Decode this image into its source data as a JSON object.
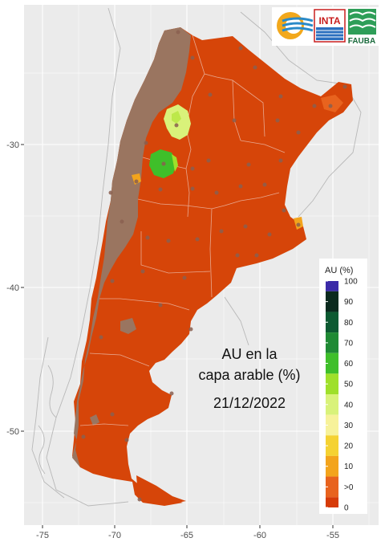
{
  "map": {
    "annotation_lines": [
      "AU en la",
      "capa arable (%)",
      "21/12/2022"
    ],
    "x_ticks": [
      "-75",
      "-70",
      "-65",
      "-60",
      "-55"
    ],
    "y_ticks": [
      "-30",
      "-40",
      "-50"
    ],
    "panel_bg": "#ebebeb",
    "grid_color": "#ffffff",
    "land_color": "#d64509",
    "andes_color": "#9a7560",
    "border_color": "#e8a890",
    "station_color": "#8a6050",
    "neighbor_color": "#b8b8b8"
  },
  "legend": {
    "title": "AU (%)",
    "entries": [
      {
        "label": "100",
        "color": "#3b2aa8"
      },
      {
        "label": "90",
        "color": "#0b2a1e"
      },
      {
        "label": "80",
        "color": "#0d5a32"
      },
      {
        "label": "70",
        "color": "#1f8a34"
      },
      {
        "label": "60",
        "color": "#3fbf2a"
      },
      {
        "label": "50",
        "color": "#9fe02a"
      },
      {
        "label": "40",
        "color": "#d9f27a"
      },
      {
        "label": "30",
        "color": "#f7f29a"
      },
      {
        "label": "20",
        "color": "#f5d232"
      },
      {
        "label": "10",
        "color": "#f3a41c"
      },
      {
        "label": ">0",
        "color": "#e8631e"
      },
      {
        "label": "0",
        "color": "#d63b08"
      }
    ]
  },
  "logos": {
    "inta_text": "INTA",
    "fauba_text": "FAUBA"
  }
}
